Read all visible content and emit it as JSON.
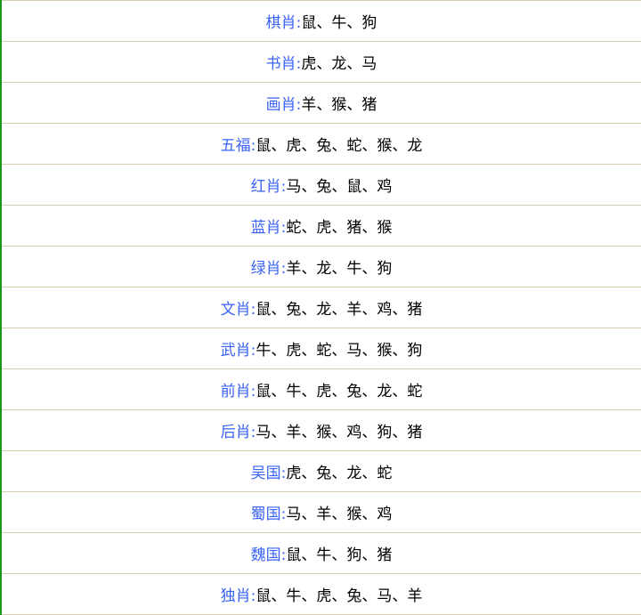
{
  "colors": {
    "label": "#3a63f5",
    "border": "#d9cfae",
    "left_bar": "#1a9a1a"
  },
  "rows": [
    {
      "label": "棋肖:",
      "value": "鼠、牛、狗"
    },
    {
      "label": "书肖:",
      "value": "虎、龙、马"
    },
    {
      "label": "画肖:",
      "value": "羊、猴、猪"
    },
    {
      "label": "五福:",
      "value": "鼠、虎、兔、蛇、猴、龙"
    },
    {
      "label": "红肖:",
      "value": "马、兔、鼠、鸡"
    },
    {
      "label": "蓝肖:",
      "value": "蛇、虎、猪、猴"
    },
    {
      "label": "绿肖:",
      "value": "羊、龙、牛、狗"
    },
    {
      "label": "文肖:",
      "value": "鼠、兔、龙、羊、鸡、猪"
    },
    {
      "label": "武肖:",
      "value": "牛、虎、蛇、马、猴、狗"
    },
    {
      "label": "前肖:",
      "value": "鼠、牛、虎、兔、龙、蛇"
    },
    {
      "label": "后肖:",
      "value": "马、羊、猴、鸡、狗、猪"
    },
    {
      "label": "吴国:",
      "value": "虎、兔、龙、蛇"
    },
    {
      "label": "蜀国:",
      "value": "马、羊、猴、鸡"
    },
    {
      "label": "魏国:",
      "value": "鼠、牛、狗、猪"
    },
    {
      "label": "独肖:",
      "value": "鼠、牛、虎、兔、马、羊"
    }
  ]
}
